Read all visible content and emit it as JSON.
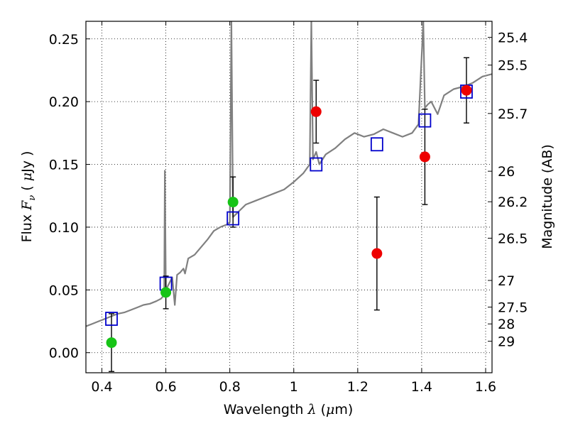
{
  "chart_data": {
    "type": "scatter",
    "xlabel": {
      "prefix": "Wavelength  ",
      "symbol": "λ",
      "unit_open": " (",
      "unit_mu": "μ",
      "unit_rest": "m)"
    },
    "ylabel": {
      "prefix": "Flux  ",
      "symbol": "F",
      "subscript": "ν",
      "unit_open": "  ( ",
      "unit_mu": "μ",
      "unit_rest": "Jy )"
    },
    "y2label": "Magnitude (AB)",
    "xlim": [
      0.35,
      1.62
    ],
    "ylim": [
      -0.016,
      0.264
    ],
    "grid": true,
    "x_ticks": [
      {
        "value": 0.4,
        "label": "0.4"
      },
      {
        "value": 0.6,
        "label": "0.6"
      },
      {
        "value": 0.8,
        "label": "0.8"
      },
      {
        "value": 1.0,
        "label": "1"
      },
      {
        "value": 1.2,
        "label": "1.2"
      },
      {
        "value": 1.4,
        "label": "1.4"
      },
      {
        "value": 1.6,
        "label": "1.6"
      }
    ],
    "y_ticks": [
      {
        "value": 0.0,
        "label": "0.00"
      },
      {
        "value": 0.05,
        "label": "0.05"
      },
      {
        "value": 0.1,
        "label": "0.10"
      },
      {
        "value": 0.15,
        "label": "0.15"
      },
      {
        "value": 0.2,
        "label": "0.20"
      },
      {
        "value": 0.25,
        "label": "0.25"
      }
    ],
    "mag_ticks": [
      {
        "value": 25.4,
        "label": "25.4"
      },
      {
        "value": 25.5,
        "label": "25.5"
      },
      {
        "value": 25.7,
        "label": "25.7"
      },
      {
        "value": 26.0,
        "label": "26"
      },
      {
        "value": 26.2,
        "label": "26.2"
      },
      {
        "value": 26.5,
        "label": "26.5"
      },
      {
        "value": 27.0,
        "label": "27"
      },
      {
        "value": 27.5,
        "label": "27.5"
      },
      {
        "value": 28.0,
        "label": "28"
      },
      {
        "value": 29.0,
        "label": "29"
      }
    ],
    "colors": {
      "spectrum": "#808080",
      "model": "#0000cc",
      "green": "#17c417",
      "red": "#ee0000",
      "errorbar": "#000000"
    },
    "spectrum": [
      [
        0.35,
        0.021
      ],
      [
        0.37,
        0.023
      ],
      [
        0.39,
        0.025
      ],
      [
        0.41,
        0.027
      ],
      [
        0.43,
        0.029
      ],
      [
        0.45,
        0.031
      ],
      [
        0.47,
        0.032
      ],
      [
        0.49,
        0.034
      ],
      [
        0.51,
        0.036
      ],
      [
        0.53,
        0.038
      ],
      [
        0.55,
        0.039
      ],
      [
        0.57,
        0.041
      ],
      [
        0.585,
        0.043
      ],
      [
        0.595,
        0.046
      ],
      [
        0.597,
        0.145
      ],
      [
        0.6,
        0.05
      ],
      [
        0.61,
        0.055
      ],
      [
        0.62,
        0.06
      ],
      [
        0.628,
        0.038
      ],
      [
        0.635,
        0.062
      ],
      [
        0.645,
        0.064
      ],
      [
        0.655,
        0.067
      ],
      [
        0.66,
        0.063
      ],
      [
        0.67,
        0.075
      ],
      [
        0.69,
        0.078
      ],
      [
        0.71,
        0.084
      ],
      [
        0.73,
        0.09
      ],
      [
        0.75,
        0.097
      ],
      [
        0.77,
        0.1
      ],
      [
        0.79,
        0.102
      ],
      [
        0.8,
        0.104
      ],
      [
        0.805,
        0.264
      ],
      [
        0.81,
        0.108
      ],
      [
        0.83,
        0.113
      ],
      [
        0.85,
        0.118
      ],
      [
        0.88,
        0.121
      ],
      [
        0.91,
        0.124
      ],
      [
        0.94,
        0.127
      ],
      [
        0.97,
        0.13
      ],
      [
        1.0,
        0.136
      ],
      [
        1.03,
        0.143
      ],
      [
        1.05,
        0.15
      ],
      [
        1.055,
        0.264
      ],
      [
        1.06,
        0.154
      ],
      [
        1.07,
        0.16
      ],
      [
        1.08,
        0.15
      ],
      [
        1.1,
        0.158
      ],
      [
        1.13,
        0.163
      ],
      [
        1.16,
        0.17
      ],
      [
        1.19,
        0.175
      ],
      [
        1.22,
        0.172
      ],
      [
        1.25,
        0.174
      ],
      [
        1.28,
        0.178
      ],
      [
        1.31,
        0.175
      ],
      [
        1.34,
        0.172
      ],
      [
        1.37,
        0.175
      ],
      [
        1.39,
        0.182
      ],
      [
        1.405,
        0.264
      ],
      [
        1.41,
        0.195
      ],
      [
        1.42,
        0.198
      ],
      [
        1.43,
        0.2
      ],
      [
        1.45,
        0.19
      ],
      [
        1.47,
        0.205
      ],
      [
        1.5,
        0.21
      ],
      [
        1.53,
        0.212
      ],
      [
        1.56,
        0.215
      ],
      [
        1.59,
        0.22
      ],
      [
        1.62,
        0.222
      ]
    ],
    "model_points": [
      {
        "x": 0.43,
        "y": 0.027
      },
      {
        "x": 0.6,
        "y": 0.055
      },
      {
        "x": 0.81,
        "y": 0.107
      },
      {
        "x": 1.07,
        "y": 0.15
      },
      {
        "x": 1.26,
        "y": 0.166
      },
      {
        "x": 1.41,
        "y": 0.185
      },
      {
        "x": 1.54,
        "y": 0.208
      }
    ],
    "observed": [
      {
        "x": 0.43,
        "y": 0.008,
        "err": 0.023,
        "color": "green"
      },
      {
        "x": 0.6,
        "y": 0.048,
        "err": 0.013,
        "color": "green"
      },
      {
        "x": 0.81,
        "y": 0.12,
        "err": 0.02,
        "color": "green"
      },
      {
        "x": 1.07,
        "y": 0.192,
        "err": 0.025,
        "color": "red"
      },
      {
        "x": 1.26,
        "y": 0.079,
        "err": 0.045,
        "color": "red"
      },
      {
        "x": 1.41,
        "y": 0.156,
        "err": 0.038,
        "color": "red"
      },
      {
        "x": 1.54,
        "y": 0.209,
        "err": 0.026,
        "color": "red"
      }
    ]
  }
}
